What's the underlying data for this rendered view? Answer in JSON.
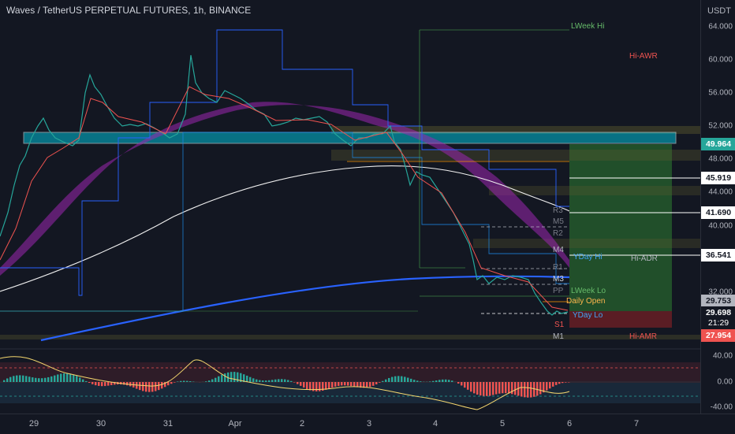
{
  "header": {
    "title": "Waves / TetherUS PERPETUAL FUTURES, 1h, BINANCE"
  },
  "price_axis": {
    "unit": "USDT",
    "ticks": [
      "64.000",
      "60.000",
      "56.000",
      "52.000",
      "48.000",
      "44.000",
      "40.000",
      "36.000",
      "32.000"
    ],
    "tags": [
      {
        "value": "49.964",
        "bg": "#26a69a",
        "fg": "#ffffff"
      },
      {
        "value": "45.919",
        "bg": "#ffffff",
        "fg": "#131722"
      },
      {
        "value": "41.690",
        "bg": "#ffffff",
        "fg": "#131722"
      },
      {
        "value": "36.541",
        "bg": "#ffffff",
        "fg": "#131722"
      },
      {
        "value": "29.753",
        "bg": "#b2b5be",
        "fg": "#131722"
      },
      {
        "value": "29.698",
        "bg": "#131722",
        "fg": "#ffffff"
      },
      {
        "value": "21:29",
        "bg": "#131722",
        "fg": "#ffffff"
      },
      {
        "value": "27.954",
        "bg": "#ef5350",
        "fg": "#ffffff"
      }
    ]
  },
  "osc_axis": {
    "ticks": [
      "40.00",
      "0.00",
      "-40.00"
    ]
  },
  "time_axis": {
    "labels": [
      "29",
      "30",
      "31",
      "Apr",
      "2",
      "3",
      "4",
      "5",
      "6",
      "7"
    ]
  },
  "levels": {
    "lweek_hi": "LWeek Hi",
    "hi_awr": "Hi-AWR",
    "r3": "R3",
    "m5": "M5",
    "r2": "R2",
    "m4": "M4",
    "yday_hi": "YDay Hi",
    "hi_adr": "Hi-ADR",
    "r1": "R1",
    "m3": "M3",
    "pp": "PP",
    "lweek_lo": "LWeek Lo",
    "daily_open": "Daily Open",
    "yday_lo": "YDay Lo",
    "s1": "S1",
    "m1": "M1",
    "hi_amr": "Hi-AMR"
  },
  "colors": {
    "bg": "#131722",
    "up": "#26a69a",
    "down": "#ef5350",
    "cloud": "#9c27b0",
    "sma": "#2962ff",
    "box": "#00bcd4"
  }
}
